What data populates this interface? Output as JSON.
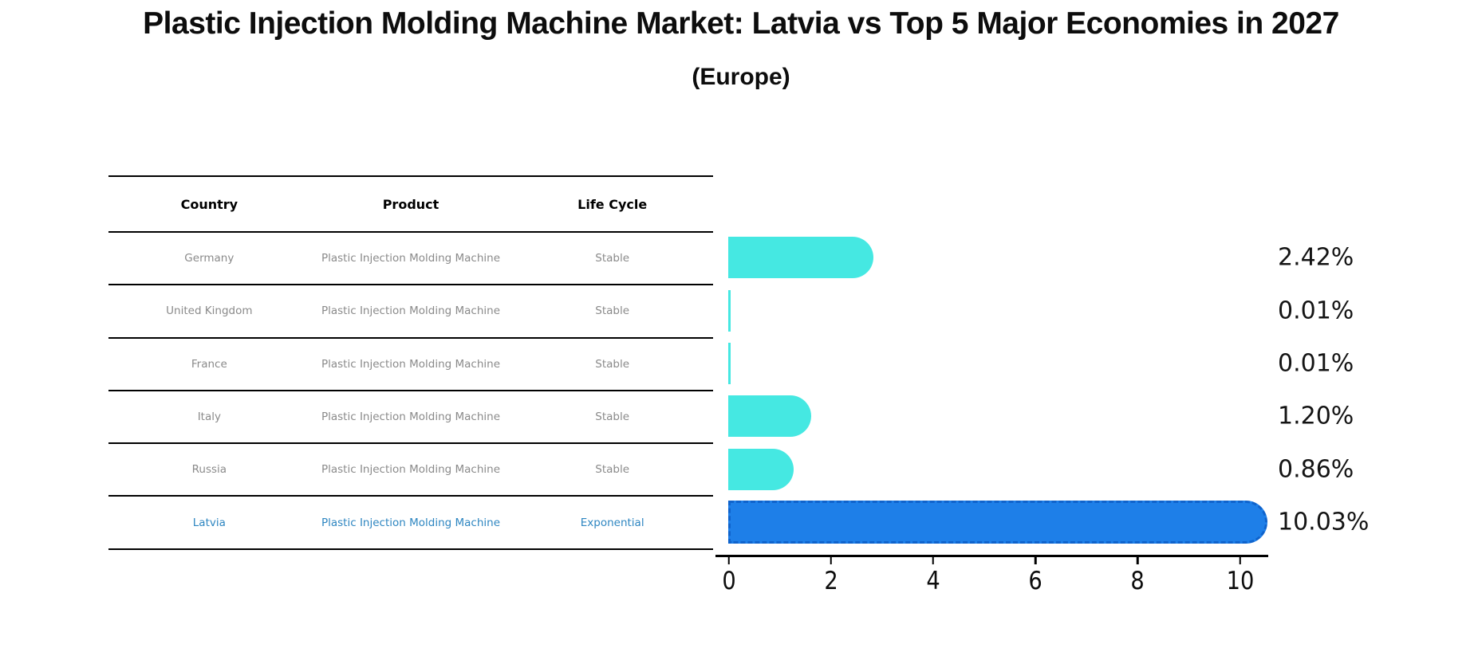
{
  "header": {
    "title": "Plastic Injection Molding Machine Market: Latvia vs Top 5 Major Economies in 2027",
    "subtitle": "(Europe)"
  },
  "table": {
    "headers": [
      "Country",
      "Product",
      "Life Cycle"
    ],
    "rows": [
      {
        "country": "Germany",
        "product": "Plastic Injection Molding Machine",
        "life_cycle": "Stable",
        "highlight": false
      },
      {
        "country": "United Kingdom",
        "product": "Plastic Injection Molding Machine",
        "life_cycle": "Stable",
        "highlight": false
      },
      {
        "country": "France",
        "product": "Plastic Injection Molding Machine",
        "life_cycle": "Stable",
        "highlight": false
      },
      {
        "country": "Italy",
        "product": "Plastic Injection Molding Machine",
        "life_cycle": "Stable",
        "highlight": false
      },
      {
        "country": "Russia",
        "product": "Plastic Injection Molding Machine",
        "life_cycle": "Stable",
        "highlight": false
      },
      {
        "country": "Latvia",
        "product": "Plastic Injection Molding Machine",
        "life_cycle": "Exponential",
        "highlight": true
      }
    ]
  },
  "chart_data": {
    "type": "bar",
    "orientation": "horizontal",
    "title": "Plastic Injection Molding Machine Market: Latvia vs Top 5 Major Economies in 2027",
    "subtitle": "(Europe)",
    "categories": [
      "Germany",
      "United Kingdom",
      "France",
      "Italy",
      "Russia",
      "Latvia"
    ],
    "values": [
      2.42,
      0.01,
      0.01,
      1.2,
      0.86,
      10.03
    ],
    "value_labels": [
      "2.42%",
      "0.01%",
      "0.01%",
      "1.20%",
      "0.86%",
      "10.03%"
    ],
    "xlabel": "",
    "ylabel": "",
    "xlim": [
      0,
      10.6
    ],
    "x_ticks": [
      0,
      2,
      4,
      6,
      8,
      10
    ],
    "grid": false,
    "legend": false,
    "highlight_index": 5,
    "bar_style_note": "cyan rounded bars; highlighted Latvia bar blue with dashed scalloped edge"
  },
  "colors": {
    "bar_cyan": "#45E8E2",
    "bar_blue": "#1E7FE8",
    "bar_blue_edge": "#0F63CC",
    "highlight_text": "#2E86C1",
    "row_text": "#8A8A8A",
    "axis_text": "#0D0D0D"
  }
}
